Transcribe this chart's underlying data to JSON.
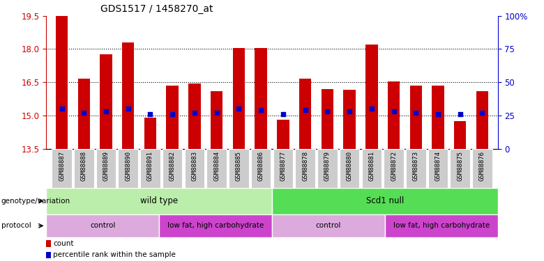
{
  "title": "GDS1517 / 1458270_at",
  "samples": [
    "GSM88887",
    "GSM88888",
    "GSM88889",
    "GSM88890",
    "GSM88891",
    "GSM88882",
    "GSM88883",
    "GSM88884",
    "GSM88885",
    "GSM88886",
    "GSM88877",
    "GSM88878",
    "GSM88879",
    "GSM88880",
    "GSM88881",
    "GSM88872",
    "GSM88873",
    "GSM88874",
    "GSM88875",
    "GSM88876"
  ],
  "counts": [
    19.5,
    16.65,
    17.75,
    18.3,
    14.9,
    16.35,
    16.45,
    16.1,
    18.05,
    18.05,
    14.8,
    16.65,
    16.2,
    16.15,
    18.2,
    16.55,
    16.35,
    16.35,
    14.75,
    16.1
  ],
  "percentiles": [
    30,
    27,
    28,
    30,
    26,
    26,
    27,
    27,
    30,
    29,
    26,
    29,
    28,
    28,
    30,
    28,
    27,
    26,
    26,
    27
  ],
  "ymin": 13.5,
  "ymax": 19.5,
  "yticks": [
    13.5,
    15.0,
    16.5,
    18.0,
    19.5
  ],
  "y2ticks": [
    0,
    25,
    50,
    75,
    100
  ],
  "bar_color": "#cc0000",
  "dot_color": "#0000cc",
  "bar_width": 0.55,
  "genotype_groups": [
    {
      "label": "wild type",
      "start": 0,
      "end": 10,
      "color": "#bbeeaa"
    },
    {
      "label": "Scd1 null",
      "start": 10,
      "end": 20,
      "color": "#55dd55"
    }
  ],
  "protocol_groups": [
    {
      "label": "control",
      "start": 0,
      "end": 5,
      "color": "#ddaadd"
    },
    {
      "label": "low fat, high carbohydrate",
      "start": 5,
      "end": 10,
      "color": "#cc44cc"
    },
    {
      "label": "control",
      "start": 10,
      "end": 15,
      "color": "#ddaadd"
    },
    {
      "label": "low fat, high carbohydrate",
      "start": 15,
      "end": 20,
      "color": "#cc44cc"
    }
  ],
  "legend_items": [
    {
      "label": "count",
      "color": "#cc0000"
    },
    {
      "label": "percentile rank within the sample",
      "color": "#0000cc"
    }
  ],
  "genotype_label": "genotype/variation",
  "protocol_label": "protocol",
  "grid_color": "#000000",
  "axis_color_left": "#cc0000",
  "axis_color_right": "#0000cc"
}
